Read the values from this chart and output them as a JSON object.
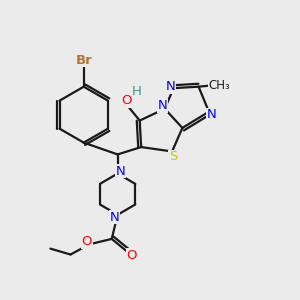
{
  "background_color": "#ebebeb",
  "bond_color": "#1a1a1a",
  "atom_colors": {
    "Br": "#b87333",
    "N": "#0000ff",
    "O": "#ff0000",
    "S": "#cccc00",
    "H": "#4a9090",
    "C": "#1a1a1a"
  },
  "figsize": [
    3.0,
    3.0
  ],
  "dpi": 100
}
